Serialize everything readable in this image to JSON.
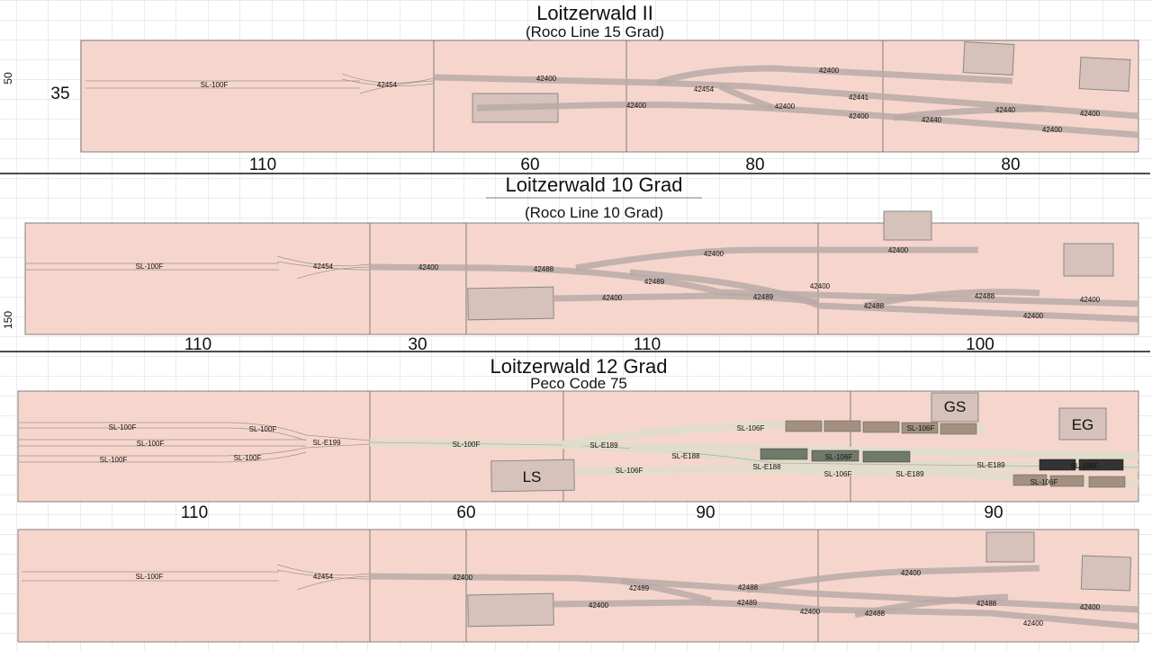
{
  "colors": {
    "board": "#f6d6cc",
    "track": "#b8aaa6",
    "track_light": "#e0dccb",
    "building": "#d6c2bb",
    "grid": "#d8d8d8"
  },
  "panel1": {
    "title": "Loitzerwald II",
    "subtitle": "(Roco Line 15 Grad)",
    "side_top": "50",
    "side_width": "35",
    "dims": [
      "110",
      "60",
      "80",
      "80"
    ],
    "labels": [
      "SL-100F",
      "42454",
      "42400",
      "42454",
      "42400",
      "42400",
      "42441",
      "42400",
      "42400",
      "42440",
      "42440",
      "42400",
      "42400"
    ]
  },
  "panel2": {
    "title": "Loitzerwald 10 Grad",
    "subtitle": "(Roco Line 10 Grad)",
    "side_bottom": "150",
    "dims": [
      "110",
      "30",
      "110",
      "100"
    ],
    "labels": [
      "SL-100F",
      "42454",
      "42400",
      "42488",
      "42400",
      "42489",
      "42400",
      "42400",
      "42400",
      "42489",
      "42488",
      "42488",
      "42400",
      "42400"
    ]
  },
  "panel3": {
    "title": "Loitzerwald 12 Grad",
    "subtitle": "Peco Code 75",
    "dims": [
      "110",
      "60",
      "90",
      "90"
    ],
    "buildings": [
      "GS",
      "EG",
      "LS"
    ],
    "labels": [
      "SL-100F",
      "SL-100F",
      "SL-100F",
      "SL-100F",
      "SL-100F",
      "SL-E199",
      "SL-100F",
      "SL-E189",
      "SL-106F",
      "SL-106F",
      "SL-E188",
      "SL-E188",
      "SL-106F",
      "SL-106F",
      "SL-106F",
      "SL-E189",
      "SL-E189",
      "SL-106F",
      "SL-106F"
    ]
  },
  "panel4": {
    "labels": [
      "SL-100F",
      "42454",
      "42400",
      "42489",
      "42488",
      "42400",
      "42400",
      "42489",
      "42400",
      "42488",
      "42488",
      "42400",
      "42400"
    ]
  }
}
